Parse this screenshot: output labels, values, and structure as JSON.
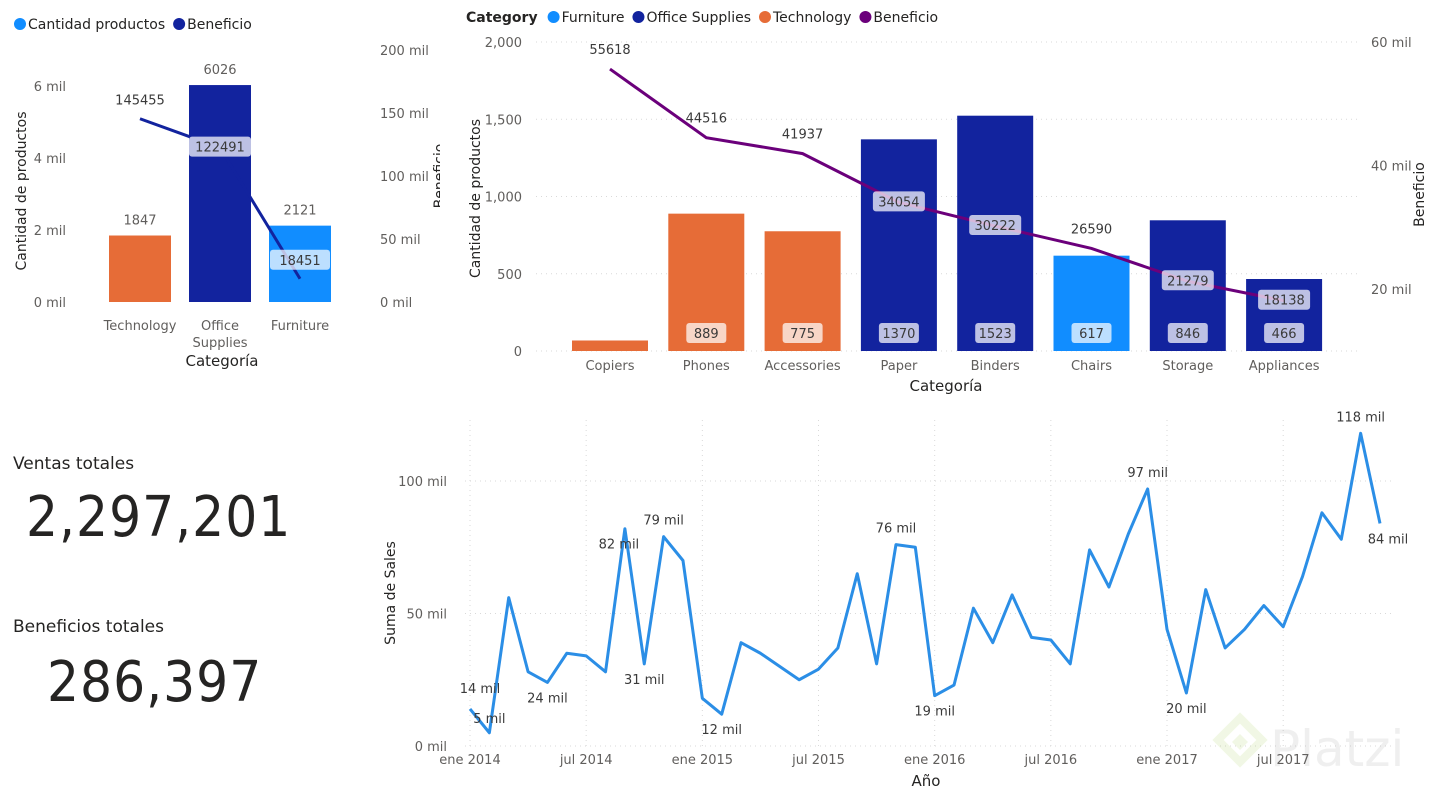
{
  "colors": {
    "furniture": "#118DFF",
    "office_supplies": "#12239E",
    "technology": "#E66C37",
    "beneficio_1": "#12239E",
    "beneficio_2": "#6B007B",
    "sales_line": "#2B8EE6",
    "text": "#252423",
    "muted": "#605E5C"
  },
  "kpis": {
    "ventas_label": "Ventas totales",
    "ventas_value": "2,297,201",
    "beneficios_label": "Beneficios totales",
    "beneficios_value": "286,397"
  },
  "watermark": {
    "text": "Platzi"
  },
  "chart_data": [
    {
      "id": "c1",
      "type": "bar",
      "combo": "bar+line",
      "legend": [
        "Cantidad productos",
        "Beneficio"
      ],
      "legend_position": "top-left",
      "categories": [
        "Technology",
        "Office Supplies",
        "Furniture"
      ],
      "category_label_lines": [
        [
          "Technology"
        ],
        [
          "Office",
          "Supplies"
        ],
        [
          "Furniture"
        ]
      ],
      "series": [
        {
          "name": "Cantidad productos",
          "values": [
            1847,
            6026,
            2121
          ],
          "colors": [
            "technology",
            "office_supplies",
            "furniture"
          ],
          "axis": "left"
        },
        {
          "name": "Beneficio",
          "values": [
            145455,
            122491,
            18451
          ],
          "axis": "right",
          "color": "beneficio_1"
        }
      ],
      "bar_labels": [
        "1847",
        "6026",
        "2121"
      ],
      "line_labels": [
        "145455",
        "122491",
        "18451"
      ],
      "xlabel": "Categoría",
      "ylabel": "Cantidad de productos",
      "y2label": "Beneficio",
      "ylim": [
        0,
        6000
      ],
      "y_ticks": [
        0,
        2000,
        4000,
        6000
      ],
      "y_tick_labels": [
        "0 mil",
        "2 mil",
        "4 mil",
        "6 mil"
      ],
      "y2lim": [
        0,
        200000
      ],
      "y2_ticks": [
        0,
        50000,
        100000,
        150000,
        200000
      ],
      "y2_tick_labels": [
        "0 mil",
        "50 mil",
        "100 mil",
        "150 mil",
        "200 mil"
      ]
    },
    {
      "id": "c2",
      "type": "bar",
      "combo": "bar+line",
      "legend_title": "Category",
      "legend": [
        "Furniture",
        "Office Supplies",
        "Technology",
        "Beneficio"
      ],
      "legend_position": "top-left",
      "categories": [
        "Copiers",
        "Phones",
        "Accessories",
        "Paper",
        "Binders",
        "Chairs",
        "Storage",
        "Appliances"
      ],
      "series": [
        {
          "name": "Cantidad de productos",
          "values": [
            68,
            889,
            775,
            1370,
            1523,
            617,
            846,
            466
          ],
          "groups": [
            "technology",
            "technology",
            "technology",
            "office_supplies",
            "office_supplies",
            "furniture",
            "office_supplies",
            "office_supplies"
          ],
          "axis": "left"
        },
        {
          "name": "Beneficio",
          "values": [
            55618,
            44516,
            41937,
            34054,
            30222,
            26590,
            21279,
            18138
          ],
          "axis": "right",
          "color": "beneficio_2"
        }
      ],
      "bar_labels": [
        "",
        "889",
        "775",
        "1370",
        "1523",
        "617",
        "846",
        "466"
      ],
      "line_labels": [
        "55618",
        "44516",
        "41937",
        "34054",
        "30222",
        "26590",
        "21279",
        "18138"
      ],
      "xlabel": "Categoría",
      "ylabel": "Cantidad de productos",
      "y2label": "Beneficio",
      "ylim": [
        0,
        2000
      ],
      "y_ticks": [
        0,
        500,
        1000,
        1500,
        2000
      ],
      "y_tick_labels": [
        "0",
        "500",
        "1,000",
        "1,500",
        "2,000"
      ],
      "y2lim": [
        10000,
        60000
      ],
      "y2_ticks": [
        20000,
        40000,
        60000
      ],
      "y2_tick_labels": [
        "20 mil",
        "40 mil",
        "60 mil"
      ]
    },
    {
      "id": "c3",
      "type": "line",
      "x_start": "ene 2014",
      "x": [
        0,
        1,
        2,
        3,
        4,
        5,
        6,
        7,
        8,
        9,
        10,
        11,
        12,
        13,
        14,
        15,
        16,
        17,
        18,
        19,
        20,
        21,
        22,
        23,
        24,
        25,
        26,
        27,
        28,
        29,
        30,
        31,
        32,
        33,
        34,
        35,
        36,
        37,
        38,
        39,
        40,
        41,
        42,
        43,
        44,
        45,
        46,
        47
      ],
      "series": [
        {
          "name": "Suma de Sales",
          "values": [
            14000,
            5000,
            56000,
            28000,
            24000,
            35000,
            34000,
            28000,
            82000,
            31000,
            79000,
            70000,
            18000,
            12000,
            39000,
            35000,
            30000,
            25000,
            29000,
            37000,
            65000,
            31000,
            76000,
            75000,
            19000,
            23000,
            52000,
            39000,
            57000,
            41000,
            40000,
            31000,
            74000,
            60000,
            80000,
            97000,
            44000,
            20000,
            59000,
            37000,
            44000,
            53000,
            45000,
            64000,
            88000,
            78000,
            118000,
            84000
          ]
        }
      ],
      "data_labels": [
        {
          "i": 0,
          "text": "14 mil"
        },
        {
          "i": 1,
          "text": "5 mil"
        },
        {
          "i": 4,
          "text": "24 mil"
        },
        {
          "i": 8,
          "text": "82 mil"
        },
        {
          "i": 9,
          "text": "31 mil"
        },
        {
          "i": 10,
          "text": "79 mil"
        },
        {
          "i": 13,
          "text": "12 mil"
        },
        {
          "i": 22,
          "text": "76 mil"
        },
        {
          "i": 24,
          "text": "19 mil"
        },
        {
          "i": 35,
          "text": "97 mil"
        },
        {
          "i": 37,
          "text": "20 mil"
        },
        {
          "i": 46,
          "text": "118 mil"
        },
        {
          "i": 47,
          "text": "84 mil"
        }
      ],
      "x_ticks": [
        0,
        6,
        12,
        18,
        24,
        30,
        36,
        42
      ],
      "x_tick_labels": [
        "ene 2014",
        "jul 2014",
        "ene 2015",
        "jul 2015",
        "ene 2016",
        "jul 2016",
        "ene 2017",
        "jul 2017"
      ],
      "xlabel": "Año",
      "ylabel": "Suma de Sales",
      "ylim": [
        0,
        120000
      ],
      "y_ticks": [
        0,
        50000,
        100000
      ],
      "y_tick_labels": [
        "0 mil",
        "50 mil",
        "100 mil"
      ]
    }
  ]
}
